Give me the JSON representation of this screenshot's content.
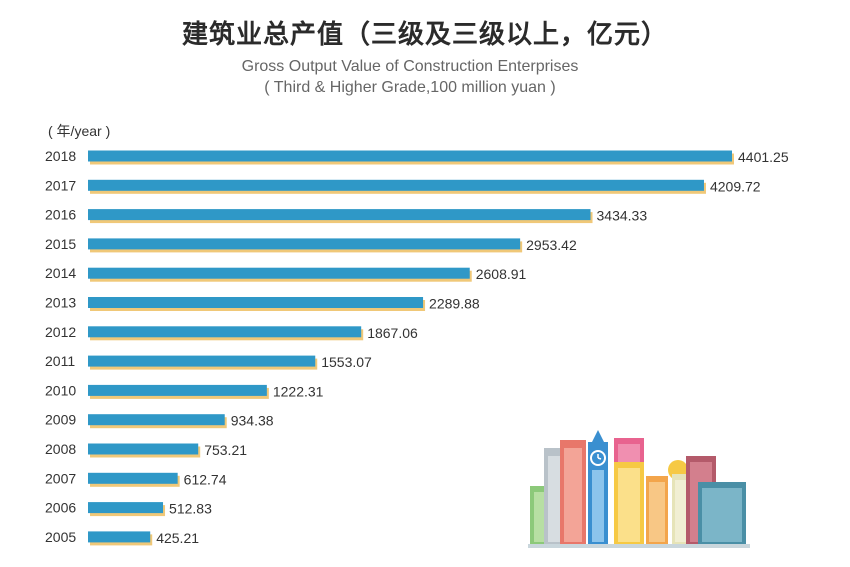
{
  "title": "建筑业总产值（三级及三级以上，亿元）",
  "subtitle_en": "Gross Output Value of Construction Enterprises",
  "subtitle_en2": "( Third & Higher Grade,100 million yuan )",
  "colors": {
    "bar": "#2f98c7",
    "bar_shadow": "#f0c878",
    "text": "#333333"
  },
  "chart_data": {
    "type": "bar",
    "orientation": "horizontal",
    "title": "建筑业总产值（三级及三级以上，亿元）",
    "ylabel": "( 年/year )",
    "categories": [
      "2018",
      "2017",
      "2016",
      "2015",
      "2014",
      "2013",
      "2012",
      "2011",
      "2010",
      "2009",
      "2008",
      "2007",
      "2006",
      "2005"
    ],
    "values": [
      4401.25,
      4209.72,
      3434.33,
      2953.42,
      2608.91,
      2289.88,
      1867.06,
      1553.07,
      1222.31,
      934.38,
      753.21,
      612.74,
      512.83,
      425.21
    ],
    "value_labels": [
      "4401.25",
      "4209.72",
      "3434.33",
      "2953.42",
      "2608.91",
      "2289.88",
      "1867.06",
      "1553.07",
      "1222.31",
      "934.38",
      "753.21",
      "612.74",
      "512.83",
      "425.21"
    ],
    "xlim": [
      0,
      4401.25
    ],
    "grid": false,
    "legend": "none"
  }
}
